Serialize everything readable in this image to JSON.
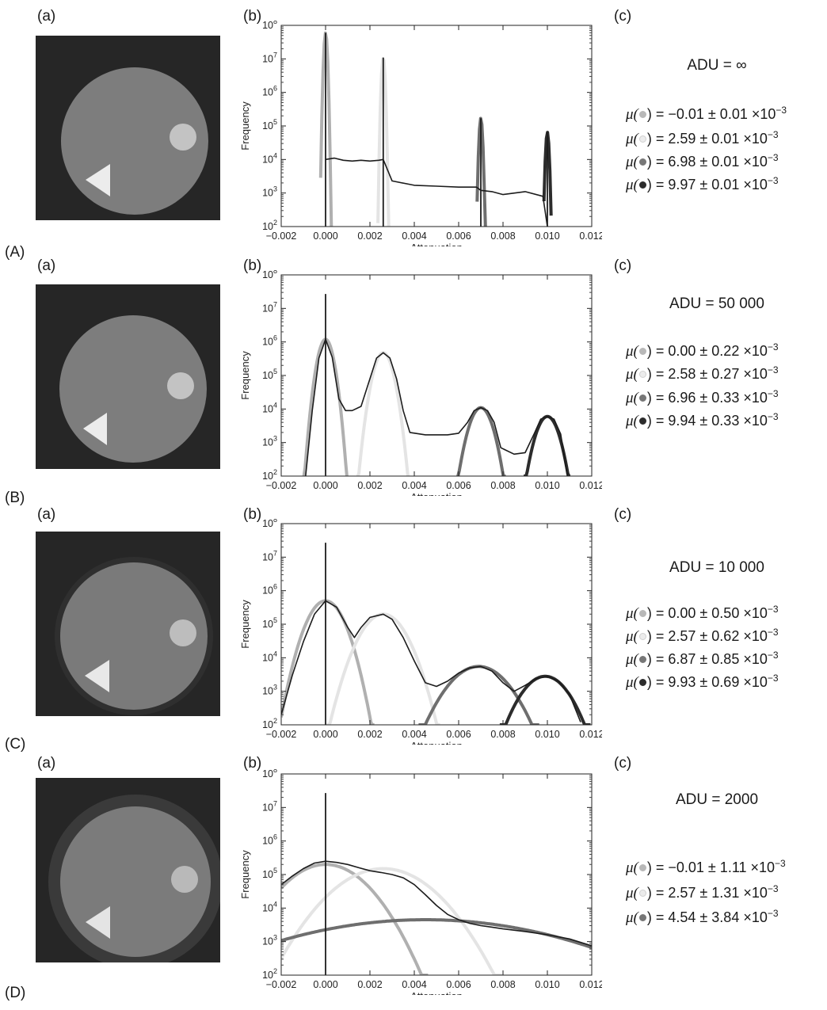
{
  "panel_labels": {
    "a": "(a)",
    "b": "(b)",
    "c": "(c)"
  },
  "axis": {
    "xlabel": "Attenuation",
    "ylabel": "Frequency"
  },
  "colors": {
    "c1": "#b8b8b8",
    "c2": "#e4e4e4",
    "c3": "#777777",
    "c4": "#2c2c2c",
    "curve": "#1c1c1c"
  },
  "rows": [
    {
      "row_label": "(A)",
      "adu": "ADU = ∞",
      "stats": [
        {
          "open": "μ(",
          "close": ") = −0.01 ± 0.01 ×10",
          "exp": "−3",
          "color": "#b8b8b8"
        },
        {
          "open": "μ(",
          "close": ") = 2.59 ± 0.01 ×10",
          "exp": "−3",
          "color": "#ececec"
        },
        {
          "open": "μ(",
          "close": ") = 6.98 ± 0.01 ×10",
          "exp": "−3",
          "color": "#777777"
        },
        {
          "open": "μ(",
          "close": ") = 9.97 ± 0.01 ×10",
          "exp": "−3",
          "color": "#2c2c2c"
        }
      ]
    },
    {
      "row_label": "(B)",
      "adu": "ADU = 50 000",
      "stats": [
        {
          "open": "μ(",
          "close": ") = 0.00 ± 0.22 ×10",
          "exp": "−3",
          "color": "#b8b8b8"
        },
        {
          "open": "μ(",
          "close": ") = 2.58 ± 0.27 ×10",
          "exp": "−3",
          "color": "#ececec"
        },
        {
          "open": "μ(",
          "close": ") = 6.96 ± 0.33 ×10",
          "exp": "−3",
          "color": "#777777"
        },
        {
          "open": "μ(",
          "close": ") = 9.94 ± 0.33 ×10",
          "exp": "−3",
          "color": "#2c2c2c"
        }
      ]
    },
    {
      "row_label": "(C)",
      "adu": "ADU = 10 000",
      "stats": [
        {
          "open": "μ(",
          "close": ") = 0.00 ± 0.50 ×10",
          "exp": "−3",
          "color": "#b8b8b8"
        },
        {
          "open": "μ(",
          "close": ") = 2.57 ± 0.62 ×10",
          "exp": "−3",
          "color": "#ececec"
        },
        {
          "open": "μ(",
          "close": ") = 6.87 ± 0.85 ×10",
          "exp": "−3",
          "color": "#777777"
        },
        {
          "open": "μ(",
          "close": ") = 9.93 ± 0.69 ×10",
          "exp": "−3",
          "color": "#2c2c2c"
        }
      ]
    },
    {
      "row_label": "(D)",
      "adu": "ADU = 2000",
      "stats": [
        {
          "open": "μ(",
          "close": ") = −0.01 ± 1.11 ×10",
          "exp": "−3",
          "color": "#b8b8b8"
        },
        {
          "open": "μ(",
          "close": ") =  2.57 ± 1.31 ×10",
          "exp": "−3",
          "color": "#ececec"
        },
        {
          "open": "μ(",
          "close": ") =  4.54 ± 3.84 ×10",
          "exp": "−3",
          "color": "#777777"
        }
      ]
    }
  ],
  "chart_data": [
    {
      "type": "line",
      "xlabel": "Attenuation",
      "ylabel": "Frequency",
      "xlim": [
        -0.002,
        0.012
      ],
      "ylim": [
        100,
        100000000
      ],
      "yscale": "log",
      "xticks": [
        "−0.002",
        "0.000",
        "0.002",
        "0.004",
        "0.006",
        "0.008",
        "0.010",
        "0.012"
      ],
      "yticks": [
        "10^2",
        "10^3",
        "10^4",
        "10^5",
        "10^6",
        "10^7",
        "10^8"
      ],
      "spikes": [
        {
          "x": 0.0,
          "y": 60000000
        },
        {
          "x": 0.0026,
          "y": 11000000
        },
        {
          "x": 0.007,
          "y": 170000
        },
        {
          "x": 0.01,
          "y": 65000
        }
      ],
      "series": [
        {
          "x": [
            0.0,
            0.0004,
            0.0008,
            0.0012,
            0.0016,
            0.002,
            0.0024,
            0.0026,
            0.003,
            0.004,
            0.005,
            0.006,
            0.0068,
            0.007,
            0.0075,
            0.008,
            0.009,
            0.0098,
            0.01
          ],
          "y": [
            10000,
            11000,
            9500,
            9000,
            9500,
            9000,
            9500,
            10000,
            2300,
            1700,
            1600,
            1500,
            1500,
            1200,
            1100,
            900,
            1100,
            800,
            100
          ]
        }
      ],
      "gaussians": [
        {
          "mu": 0.0,
          "sigma": 5e-05,
          "peak": 60000000,
          "color": "#b0b0b0"
        },
        {
          "mu": 0.0026,
          "sigma": 5e-05,
          "peak": 11000000,
          "color": "#e4e4e4"
        },
        {
          "mu": 0.007,
          "sigma": 5e-05,
          "peak": 170000,
          "color": "#6e6e6e"
        },
        {
          "mu": 0.01,
          "sigma": 5e-05,
          "peak": 65000,
          "color": "#2c2c2c"
        }
      ]
    },
    {
      "type": "line",
      "xlabel": "Attenuation",
      "ylabel": "Frequency",
      "xlim": [
        -0.002,
        0.012
      ],
      "ylim": [
        100,
        100000000
      ],
      "yscale": "log",
      "xticks": [
        "−0.002",
        "0.000",
        "0.002",
        "0.004",
        "0.006",
        "0.008",
        "0.010",
        "0.012"
      ],
      "yticks": [
        "10^2",
        "10^3",
        "10^4",
        "10^5",
        "10^6",
        "10^7",
        "10^8"
      ],
      "spikes": [
        {
          "x": 0.0,
          "y": 27000000
        }
      ],
      "series": [
        {
          "x": [
            -0.0009,
            -0.0006,
            -0.0003,
            0.0,
            0.0003,
            0.0006,
            0.0009,
            0.0012,
            0.0016,
            0.002,
            0.0023,
            0.0026,
            0.0029,
            0.0032,
            0.0035,
            0.0038,
            0.0045,
            0.0055,
            0.006,
            0.0064,
            0.0067,
            0.007,
            0.0073,
            0.0076,
            0.0079,
            0.0085,
            0.009,
            0.0094,
            0.0097,
            0.01,
            0.0103,
            0.0106,
            0.0109
          ],
          "y": [
            100,
            9000,
            330000,
            1200000,
            350000,
            20000,
            9000,
            9000,
            12000,
            80000,
            330000,
            480000,
            330000,
            80000,
            9000,
            2000,
            1700,
            1700,
            1900,
            4000,
            9000,
            11000,
            9000,
            4000,
            700,
            450,
            500,
            1800,
            5000,
            6000,
            5000,
            1800,
            100
          ]
        }
      ],
      "gaussians": [
        {
          "mu": 0.0,
          "sigma": 0.00022,
          "peak": 1200000,
          "color": "#b0b0b0"
        },
        {
          "mu": 0.0026,
          "sigma": 0.00027,
          "peak": 480000,
          "color": "#e4e4e4"
        },
        {
          "mu": 0.007,
          "sigma": 0.00033,
          "peak": 11000,
          "color": "#6e6e6e"
        },
        {
          "mu": 0.01,
          "sigma": 0.00033,
          "peak": 6000,
          "color": "#2c2c2c"
        }
      ]
    },
    {
      "type": "line",
      "xlabel": "Attenuation",
      "ylabel": "Frequency",
      "xlim": [
        -0.002,
        0.012
      ],
      "ylim": [
        100,
        100000000
      ],
      "yscale": "log",
      "xticks": [
        "−0.002",
        "0.000",
        "0.002",
        "0.004",
        "0.006",
        "0.008",
        "0.010",
        "0.012"
      ],
      "yticks": [
        "10^2",
        "10^3",
        "10^4",
        "10^5",
        "10^6",
        "10^7",
        "10^8"
      ],
      "spikes": [
        {
          "x": 0.0,
          "y": 27000000
        }
      ],
      "series": [
        {
          "x": [
            -0.002,
            -0.0015,
            -0.001,
            -0.0005,
            0.0,
            0.0005,
            0.001,
            0.0013,
            0.0016,
            0.002,
            0.0026,
            0.003,
            0.0035,
            0.004,
            0.0045,
            0.005,
            0.0055,
            0.006,
            0.0065,
            0.007,
            0.0075,
            0.008,
            0.0085,
            0.009,
            0.0095,
            0.01,
            0.0105,
            0.011,
            0.0115
          ],
          "y": [
            200,
            3000,
            30000,
            200000,
            500000,
            320000,
            80000,
            40000,
            80000,
            160000,
            200000,
            140000,
            40000,
            8000,
            1800,
            1400,
            2000,
            3500,
            5000,
            5500,
            4000,
            1800,
            1000,
            1500,
            2400,
            2800,
            2000,
            800,
            120
          ]
        }
      ],
      "gaussians": [
        {
          "mu": 0.0,
          "sigma": 0.0005,
          "peak": 500000,
          "color": "#b0b0b0"
        },
        {
          "mu": 0.0026,
          "sigma": 0.00062,
          "peak": 200000,
          "color": "#e4e4e4"
        },
        {
          "mu": 0.0069,
          "sigma": 0.00085,
          "peak": 5500,
          "color": "#6e6e6e"
        },
        {
          "mu": 0.0099,
          "sigma": 0.00069,
          "peak": 2800,
          "color": "#2c2c2c"
        }
      ]
    },
    {
      "type": "line",
      "xlabel": "Attenuation",
      "ylabel": "Frequency",
      "xlim": [
        -0.002,
        0.012
      ],
      "ylim": [
        100,
        100000000
      ],
      "yscale": "log",
      "xticks": [
        "−0.002",
        "0.000",
        "0.002",
        "0.004",
        "0.006",
        "0.008",
        "0.010",
        "0.012"
      ],
      "yticks": [
        "10^2",
        "10^3",
        "10^4",
        "10^5",
        "10^6",
        "10^7",
        "10^8"
      ],
      "spikes": [
        {
          "x": 0.0,
          "y": 27000000
        }
      ],
      "series": [
        {
          "x": [
            -0.002,
            -0.0015,
            -0.001,
            -0.0005,
            0.0,
            0.0005,
            0.001,
            0.0015,
            0.002,
            0.0025,
            0.003,
            0.0035,
            0.004,
            0.0045,
            0.005,
            0.0055,
            0.006,
            0.0065,
            0.007,
            0.0075,
            0.008,
            0.009,
            0.01,
            0.011,
            0.012
          ],
          "y": [
            50000,
            90000,
            150000,
            220000,
            250000,
            230000,
            200000,
            160000,
            130000,
            115000,
            100000,
            80000,
            50000,
            25000,
            12000,
            6500,
            4500,
            3500,
            3000,
            2700,
            2400,
            2000,
            1600,
            1200,
            750
          ]
        }
      ],
      "gaussians": [
        {
          "mu": 0.0,
          "sigma": 0.00111,
          "peak": 200000,
          "color": "#b0b0b0"
        },
        {
          "mu": 0.0026,
          "sigma": 0.00131,
          "peak": 150000,
          "color": "#e4e4e4"
        },
        {
          "mu": 0.0045,
          "sigma": 0.00384,
          "peak": 4500,
          "color": "#6e6e6e"
        }
      ]
    }
  ]
}
